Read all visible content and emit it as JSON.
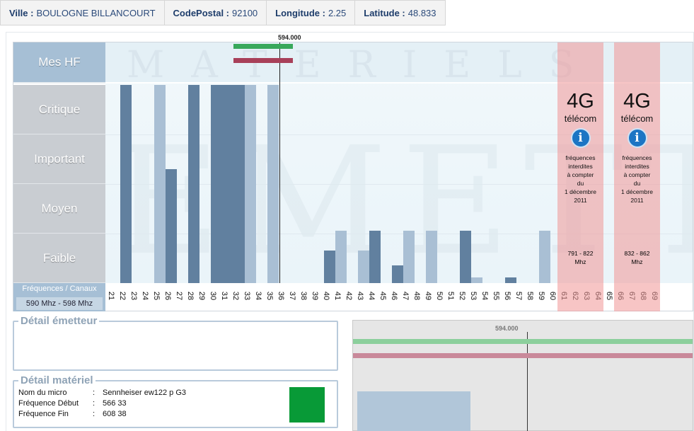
{
  "info": {
    "ville_label": "Ville :",
    "ville": "BOULOGNE BILLANCOURT",
    "cp_label": "CodePostal :",
    "cp": "92100",
    "lon_label": "Longitude :",
    "lon": "2.25",
    "lat_label": "Latitude :",
    "lat": "48.833"
  },
  "chart": {
    "rows": [
      "Mes HF",
      "Critique",
      "Important",
      "Moyen",
      "Faible"
    ],
    "watermark_top": "MATERIELS",
    "watermark_mid": "EMETTEURS",
    "freq_label": "Fréquences / Canaux",
    "freq_range": "590 Mhz - 598 Mhz",
    "marker_label": "594.000",
    "channels": [
      "21",
      "22",
      "23",
      "24",
      "25",
      "26",
      "27",
      "28",
      "29",
      "30",
      "31",
      "32",
      "33",
      "34",
      "35",
      "36",
      "37",
      "38",
      "39",
      "40",
      "41",
      "42",
      "43",
      "44",
      "45",
      "46",
      "47",
      "48",
      "49",
      "50",
      "51",
      "52",
      "53",
      "54",
      "55",
      "56",
      "57",
      "58",
      "59",
      "60",
      "61",
      "62",
      "63",
      "64",
      "65",
      "66",
      "67",
      "68",
      "69"
    ],
    "bars": [
      {
        "channel": "22",
        "level": 4.0,
        "tone": "dark"
      },
      {
        "channel": "25",
        "level": 4.0,
        "tone": "light"
      },
      {
        "channel": "26",
        "level": 2.3,
        "tone": "dark"
      },
      {
        "channel": "28",
        "level": 4.0,
        "tone": "dark"
      },
      {
        "channel": "30",
        "level": 4.0,
        "tone": "dark"
      },
      {
        "channel": "31",
        "level": 4.0,
        "tone": "dark"
      },
      {
        "channel": "32",
        "level": 4.0,
        "tone": "dark"
      },
      {
        "channel": "33",
        "level": 4.0,
        "tone": "light"
      },
      {
        "channel": "35",
        "level": 4.0,
        "tone": "light"
      },
      {
        "channel": "40",
        "level": 0.65,
        "tone": "dark"
      },
      {
        "channel": "41",
        "level": 1.05,
        "tone": "light"
      },
      {
        "channel": "43",
        "level": 0.65,
        "tone": "light"
      },
      {
        "channel": "44",
        "level": 1.05,
        "tone": "dark"
      },
      {
        "channel": "46",
        "level": 0.35,
        "tone": "dark"
      },
      {
        "channel": "47",
        "level": 1.05,
        "tone": "light"
      },
      {
        "channel": "49",
        "level": 1.05,
        "tone": "light"
      },
      {
        "channel": "52",
        "level": 1.05,
        "tone": "dark"
      },
      {
        "channel": "53",
        "level": 0.12,
        "tone": "light"
      },
      {
        "channel": "56",
        "level": 0.12,
        "tone": "dark"
      },
      {
        "channel": "59",
        "level": 1.05,
        "tone": "light"
      }
    ],
    "bands": [
      {
        "from": "61",
        "to": "64",
        "title": "4G",
        "sub": "télécom",
        "note1": "fréquences",
        "note2": "interdites",
        "note3": "à compter",
        "note4": "du",
        "note5": "1 décembre",
        "note6": "2011",
        "freq1": "791 - 822",
        "freq2": "Mhz"
      },
      {
        "from": "66",
        "to": "69",
        "title": "4G",
        "sub": "télécom",
        "note1": "fréquences",
        "note2": "interdites",
        "note3": "à compter",
        "note4": "du",
        "note5": "1 décembre",
        "note6": "2011",
        "freq1": "832 - 862",
        "freq2": "Mhz"
      }
    ],
    "colors": {
      "dark_bar": "#61809f",
      "light_bar": "#a9bfd4",
      "band_4g": "#f0a0a0",
      "hf_green": "#38a85b",
      "hf_red": "#a84059",
      "swatch": "#089a37"
    }
  },
  "detail_emetteur": {
    "title": "Détail émetteur"
  },
  "detail_materiel": {
    "title": "Détail matériel",
    "rows": [
      {
        "k": "Nom du micro",
        "v": "Sennheiser ew122 p G3"
      },
      {
        "k": "Fréquence Début",
        "v": "566  33"
      },
      {
        "k": "Fréquence Fin",
        "v": "608  38"
      }
    ]
  },
  "mini": {
    "marker_label": "594.000"
  }
}
